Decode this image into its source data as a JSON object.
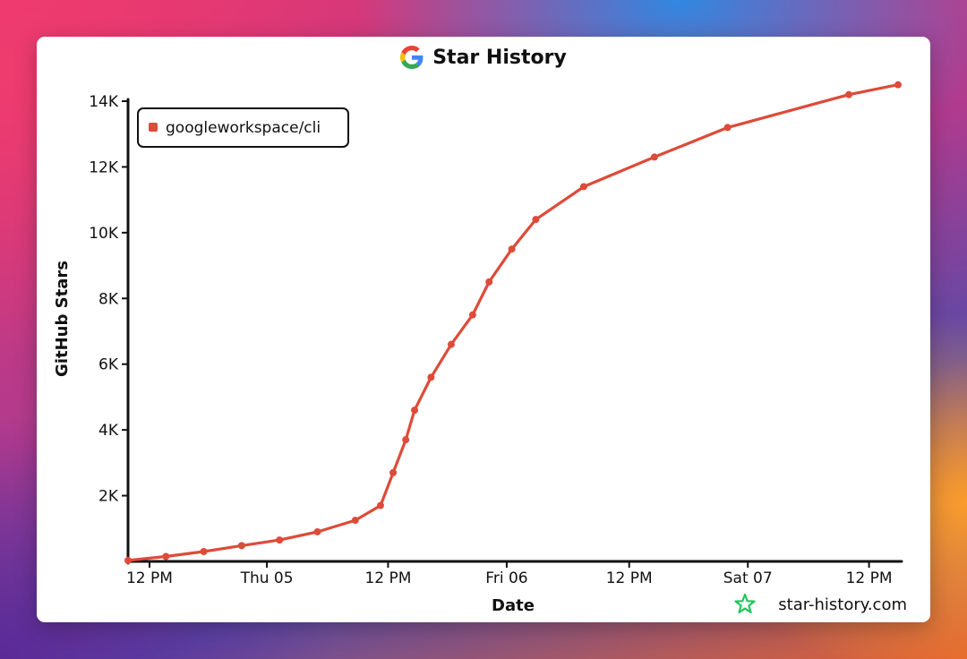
{
  "chart_data": {
    "type": "line",
    "title": "Star History",
    "xlabel": "Date",
    "ylabel": "GitHub Stars",
    "ylim": [
      0,
      14000
    ],
    "xlim": [
      0,
      61
    ],
    "y_ticks": [
      {
        "value": 2000,
        "label": "2K"
      },
      {
        "value": 4000,
        "label": "4K"
      },
      {
        "value": 6000,
        "label": "6K"
      },
      {
        "value": 8000,
        "label": "8K"
      },
      {
        "value": 10000,
        "label": "10K"
      },
      {
        "value": 12000,
        "label": "12K"
      },
      {
        "value": 14000,
        "label": "14K"
      }
    ],
    "x_ticks": [
      {
        "value": 1.7,
        "label": "12 PM"
      },
      {
        "value": 11.0,
        "label": "Thu 05"
      },
      {
        "value": 20.6,
        "label": "12 PM"
      },
      {
        "value": 30.0,
        "label": "Fri 06"
      },
      {
        "value": 39.7,
        "label": "12 PM"
      },
      {
        "value": 49.1,
        "label": "Sat 07"
      },
      {
        "value": 58.7,
        "label": "12 PM"
      }
    ],
    "legend_position": "top-left",
    "series": [
      {
        "name": "googleworkspace/cli",
        "color": "#dd4b39",
        "points": [
          [
            0,
            30
          ],
          [
            3,
            150
          ],
          [
            6,
            300
          ],
          [
            9,
            480
          ],
          [
            12,
            650
          ],
          [
            15,
            900
          ],
          [
            18,
            1250
          ],
          [
            20,
            1700
          ],
          [
            21,
            2700
          ],
          [
            22,
            3700
          ],
          [
            22.7,
            4600
          ],
          [
            24,
            5600
          ],
          [
            25.6,
            6600
          ],
          [
            27.3,
            7500
          ],
          [
            28.6,
            8500
          ],
          [
            30.4,
            9500
          ],
          [
            32.3,
            10400
          ],
          [
            36.1,
            11400
          ],
          [
            41.7,
            12300
          ],
          [
            47.5,
            13200
          ],
          [
            57.1,
            14200
          ],
          [
            61,
            14500
          ]
        ]
      }
    ]
  },
  "watermark": "star-history.com",
  "colors": {
    "google_blue": "#4285F4",
    "google_red": "#EA4335",
    "google_yellow": "#FBBC05",
    "google_green": "#34A853",
    "star_icon": "#22c55e"
  }
}
